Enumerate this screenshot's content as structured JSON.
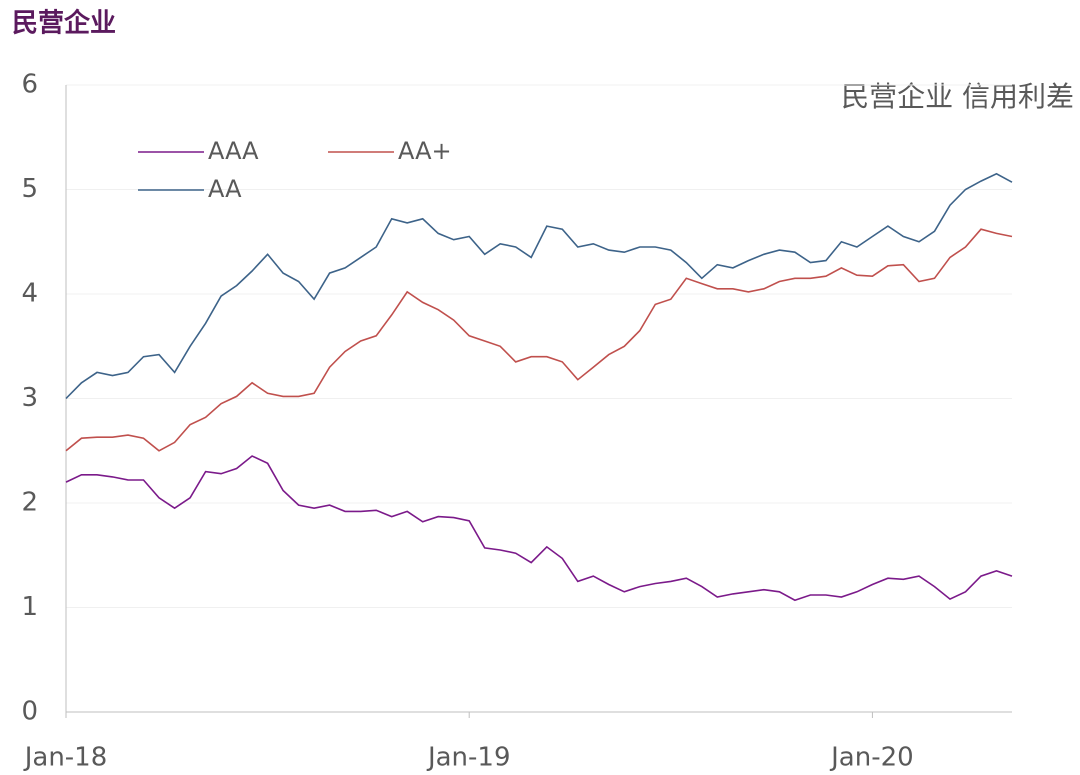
{
  "chart_data": {
    "type": "line",
    "title": "民营企业",
    "annotation": "民营企业 信用利差",
    "categories": [
      "Jan-18",
      null,
      null,
      null,
      null,
      null,
      null,
      null,
      null,
      null,
      null,
      null,
      null,
      null,
      null,
      null,
      null,
      null,
      null,
      null,
      null,
      null,
      null,
      null,
      null,
      null,
      "Jan-19",
      null,
      null,
      null,
      null,
      null,
      null,
      null,
      null,
      null,
      null,
      null,
      null,
      null,
      null,
      null,
      null,
      null,
      null,
      null,
      null,
      null,
      null,
      null,
      null,
      null,
      "Jan-20",
      null,
      null,
      null,
      null,
      null,
      null,
      null,
      null,
      null
    ],
    "series": [
      {
        "name": "AAA",
        "color": "#7b1a8a",
        "values": [
          2.2,
          2.27,
          2.27,
          2.25,
          2.22,
          2.22,
          2.05,
          1.95,
          2.05,
          2.3,
          2.28,
          2.33,
          2.45,
          2.38,
          2.12,
          1.98,
          1.95,
          1.98,
          1.92,
          1.92,
          1.93,
          1.87,
          1.92,
          1.82,
          1.87,
          1.86,
          1.83,
          1.57,
          1.55,
          1.52,
          1.43,
          1.58,
          1.47,
          1.25,
          1.3,
          1.22,
          1.15,
          1.2,
          1.23,
          1.25,
          1.28,
          1.2,
          1.1,
          1.13,
          1.15,
          1.17,
          1.15,
          1.07,
          1.12,
          1.12,
          1.1,
          1.15,
          1.22,
          1.28,
          1.27,
          1.3,
          1.2,
          1.08,
          1.15,
          1.3,
          1.35,
          1.3
        ]
      },
      {
        "name": "AA+",
        "color": "#c0504d",
        "values": [
          2.5,
          2.62,
          2.63,
          2.63,
          2.65,
          2.62,
          2.5,
          2.58,
          2.75,
          2.82,
          2.95,
          3.02,
          3.15,
          3.05,
          3.02,
          3.02,
          3.05,
          3.3,
          3.45,
          3.55,
          3.6,
          3.8,
          4.02,
          3.92,
          3.85,
          3.75,
          3.6,
          3.55,
          3.5,
          3.35,
          3.4,
          3.4,
          3.35,
          3.18,
          3.3,
          3.42,
          3.5,
          3.65,
          3.9,
          3.95,
          4.15,
          4.1,
          4.05,
          4.05,
          4.02,
          4.05,
          4.12,
          4.15,
          4.15,
          4.17,
          4.25,
          4.18,
          4.17,
          4.27,
          4.28,
          4.12,
          4.15,
          4.35,
          4.45,
          4.62,
          4.58,
          4.55
        ]
      },
      {
        "name": "AA",
        "color": "#3d6389",
        "values": [
          3.0,
          3.15,
          3.25,
          3.22,
          3.25,
          3.4,
          3.42,
          3.25,
          3.5,
          3.72,
          3.98,
          4.08,
          4.22,
          4.38,
          4.2,
          4.12,
          3.95,
          4.2,
          4.25,
          4.35,
          4.45,
          4.72,
          4.68,
          4.72,
          4.58,
          4.52,
          4.55,
          4.38,
          4.48,
          4.45,
          4.35,
          4.65,
          4.62,
          4.45,
          4.48,
          4.42,
          4.4,
          4.45,
          4.45,
          4.42,
          4.3,
          4.15,
          4.28,
          4.25,
          4.32,
          4.38,
          4.42,
          4.4,
          4.3,
          4.32,
          4.5,
          4.45,
          4.55,
          4.65,
          4.55,
          4.5,
          4.6,
          4.85,
          5.0,
          5.08,
          5.15,
          5.07
        ]
      }
    ],
    "ylim": [
      0,
      6
    ],
    "yticks": [
      0,
      1,
      2,
      3,
      4,
      5,
      6
    ],
    "grid": true
  }
}
